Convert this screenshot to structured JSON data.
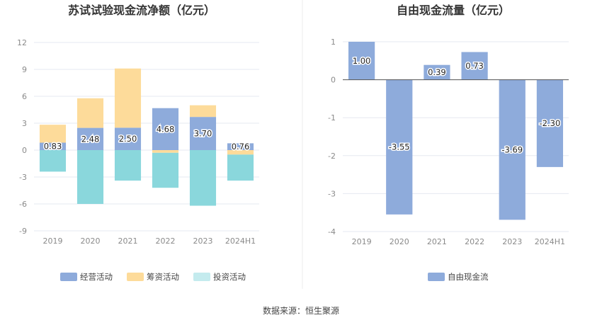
{
  "chart_data": [
    {
      "type": "bar",
      "stacked": true,
      "title": "苏试试验现金流净额（亿元）",
      "categories": [
        "2019",
        "2020",
        "2021",
        "2022",
        "2023",
        "2024H1"
      ],
      "ylim": [
        -9,
        12
      ],
      "yticks": [
        "12",
        "9",
        "6",
        "3",
        "0",
        "-3",
        "-6",
        "-9"
      ],
      "grid": true,
      "legend_position": "bottom",
      "series": [
        {
          "name": "经营活动",
          "color": "#8eabdb",
          "values": [
            0.83,
            2.48,
            2.5,
            4.68,
            3.7,
            0.76
          ],
          "labels": [
            "0.83",
            "2.48",
            "2.50",
            "4.68",
            "3.70",
            "0.76"
          ]
        },
        {
          "name": "筹资活动",
          "color": "#fddb9a",
          "values": [
            2.0,
            3.3,
            6.6,
            -0.3,
            1.3,
            -0.5
          ]
        },
        {
          "name": "投资活动",
          "color": "#8ad7dc",
          "legend_color": "#c4ebee",
          "values": [
            -2.4,
            -6.0,
            -3.4,
            -3.9,
            -6.2,
            -2.9
          ]
        }
      ]
    },
    {
      "type": "bar",
      "title": "自由现金流量（亿元）",
      "categories": [
        "2019",
        "2020",
        "2021",
        "2022",
        "2023",
        "2024H1"
      ],
      "ylim": [
        -4,
        1
      ],
      "yticks": [
        "1",
        "0",
        "-1",
        "-2",
        "-3",
        "-4"
      ],
      "grid": true,
      "legend_position": "bottom",
      "series": [
        {
          "name": "自由现金流",
          "color": "#8eabdb",
          "values": [
            1.0,
            -3.55,
            0.39,
            0.73,
            -3.69,
            -2.3
          ],
          "labels": [
            "1.00",
            "-3.55",
            "0.39",
            "0.73",
            "-3.69",
            "-2.30"
          ]
        }
      ]
    }
  ],
  "footer": {
    "source": "数据来源：恒生聚源"
  }
}
